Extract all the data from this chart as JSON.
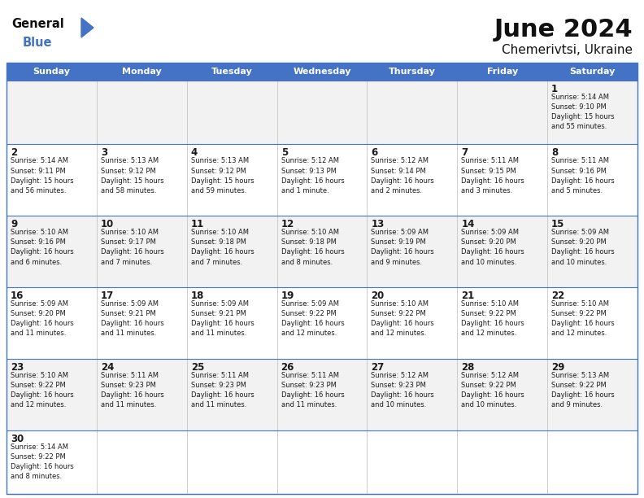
{
  "title": "June 2024",
  "subtitle": "Chemerivtsi, Ukraine",
  "header_color": "#4472C4",
  "header_text_color": "#FFFFFF",
  "bg_color": "#FFFFFF",
  "alt_row_color": "#F2F2F2",
  "border_color": "#4472C4",
  "text_color": "#1a1a1a",
  "days_of_week": [
    "Sunday",
    "Monday",
    "Tuesday",
    "Wednesday",
    "Thursday",
    "Friday",
    "Saturday"
  ],
  "calendar": [
    [
      {
        "day": "",
        "info": ""
      },
      {
        "day": "",
        "info": ""
      },
      {
        "day": "",
        "info": ""
      },
      {
        "day": "",
        "info": ""
      },
      {
        "day": "",
        "info": ""
      },
      {
        "day": "",
        "info": ""
      },
      {
        "day": "1",
        "info": "Sunrise: 5:14 AM\nSunset: 9:10 PM\nDaylight: 15 hours\nand 55 minutes."
      }
    ],
    [
      {
        "day": "2",
        "info": "Sunrise: 5:14 AM\nSunset: 9:11 PM\nDaylight: 15 hours\nand 56 minutes."
      },
      {
        "day": "3",
        "info": "Sunrise: 5:13 AM\nSunset: 9:12 PM\nDaylight: 15 hours\nand 58 minutes."
      },
      {
        "day": "4",
        "info": "Sunrise: 5:13 AM\nSunset: 9:12 PM\nDaylight: 15 hours\nand 59 minutes."
      },
      {
        "day": "5",
        "info": "Sunrise: 5:12 AM\nSunset: 9:13 PM\nDaylight: 16 hours\nand 1 minute."
      },
      {
        "day": "6",
        "info": "Sunrise: 5:12 AM\nSunset: 9:14 PM\nDaylight: 16 hours\nand 2 minutes."
      },
      {
        "day": "7",
        "info": "Sunrise: 5:11 AM\nSunset: 9:15 PM\nDaylight: 16 hours\nand 3 minutes."
      },
      {
        "day": "8",
        "info": "Sunrise: 5:11 AM\nSunset: 9:16 PM\nDaylight: 16 hours\nand 5 minutes."
      }
    ],
    [
      {
        "day": "9",
        "info": "Sunrise: 5:10 AM\nSunset: 9:16 PM\nDaylight: 16 hours\nand 6 minutes."
      },
      {
        "day": "10",
        "info": "Sunrise: 5:10 AM\nSunset: 9:17 PM\nDaylight: 16 hours\nand 7 minutes."
      },
      {
        "day": "11",
        "info": "Sunrise: 5:10 AM\nSunset: 9:18 PM\nDaylight: 16 hours\nand 7 minutes."
      },
      {
        "day": "12",
        "info": "Sunrise: 5:10 AM\nSunset: 9:18 PM\nDaylight: 16 hours\nand 8 minutes."
      },
      {
        "day": "13",
        "info": "Sunrise: 5:09 AM\nSunset: 9:19 PM\nDaylight: 16 hours\nand 9 minutes."
      },
      {
        "day": "14",
        "info": "Sunrise: 5:09 AM\nSunset: 9:20 PM\nDaylight: 16 hours\nand 10 minutes."
      },
      {
        "day": "15",
        "info": "Sunrise: 5:09 AM\nSunset: 9:20 PM\nDaylight: 16 hours\nand 10 minutes."
      }
    ],
    [
      {
        "day": "16",
        "info": "Sunrise: 5:09 AM\nSunset: 9:20 PM\nDaylight: 16 hours\nand 11 minutes."
      },
      {
        "day": "17",
        "info": "Sunrise: 5:09 AM\nSunset: 9:21 PM\nDaylight: 16 hours\nand 11 minutes."
      },
      {
        "day": "18",
        "info": "Sunrise: 5:09 AM\nSunset: 9:21 PM\nDaylight: 16 hours\nand 11 minutes."
      },
      {
        "day": "19",
        "info": "Sunrise: 5:09 AM\nSunset: 9:22 PM\nDaylight: 16 hours\nand 12 minutes."
      },
      {
        "day": "20",
        "info": "Sunrise: 5:10 AM\nSunset: 9:22 PM\nDaylight: 16 hours\nand 12 minutes."
      },
      {
        "day": "21",
        "info": "Sunrise: 5:10 AM\nSunset: 9:22 PM\nDaylight: 16 hours\nand 12 minutes."
      },
      {
        "day": "22",
        "info": "Sunrise: 5:10 AM\nSunset: 9:22 PM\nDaylight: 16 hours\nand 12 minutes."
      }
    ],
    [
      {
        "day": "23",
        "info": "Sunrise: 5:10 AM\nSunset: 9:22 PM\nDaylight: 16 hours\nand 12 minutes."
      },
      {
        "day": "24",
        "info": "Sunrise: 5:11 AM\nSunset: 9:23 PM\nDaylight: 16 hours\nand 11 minutes."
      },
      {
        "day": "25",
        "info": "Sunrise: 5:11 AM\nSunset: 9:23 PM\nDaylight: 16 hours\nand 11 minutes."
      },
      {
        "day": "26",
        "info": "Sunrise: 5:11 AM\nSunset: 9:23 PM\nDaylight: 16 hours\nand 11 minutes."
      },
      {
        "day": "27",
        "info": "Sunrise: 5:12 AM\nSunset: 9:23 PM\nDaylight: 16 hours\nand 10 minutes."
      },
      {
        "day": "28",
        "info": "Sunrise: 5:12 AM\nSunset: 9:22 PM\nDaylight: 16 hours\nand 10 minutes."
      },
      {
        "day": "29",
        "info": "Sunrise: 5:13 AM\nSunset: 9:22 PM\nDaylight: 16 hours\nand 9 minutes."
      }
    ],
    [
      {
        "day": "30",
        "info": "Sunrise: 5:14 AM\nSunset: 9:22 PM\nDaylight: 16 hours\nand 8 minutes."
      },
      {
        "day": "",
        "info": ""
      },
      {
        "day": "",
        "info": ""
      },
      {
        "day": "",
        "info": ""
      },
      {
        "day": "",
        "info": ""
      },
      {
        "day": "",
        "info": ""
      },
      {
        "day": "",
        "info": ""
      }
    ]
  ]
}
